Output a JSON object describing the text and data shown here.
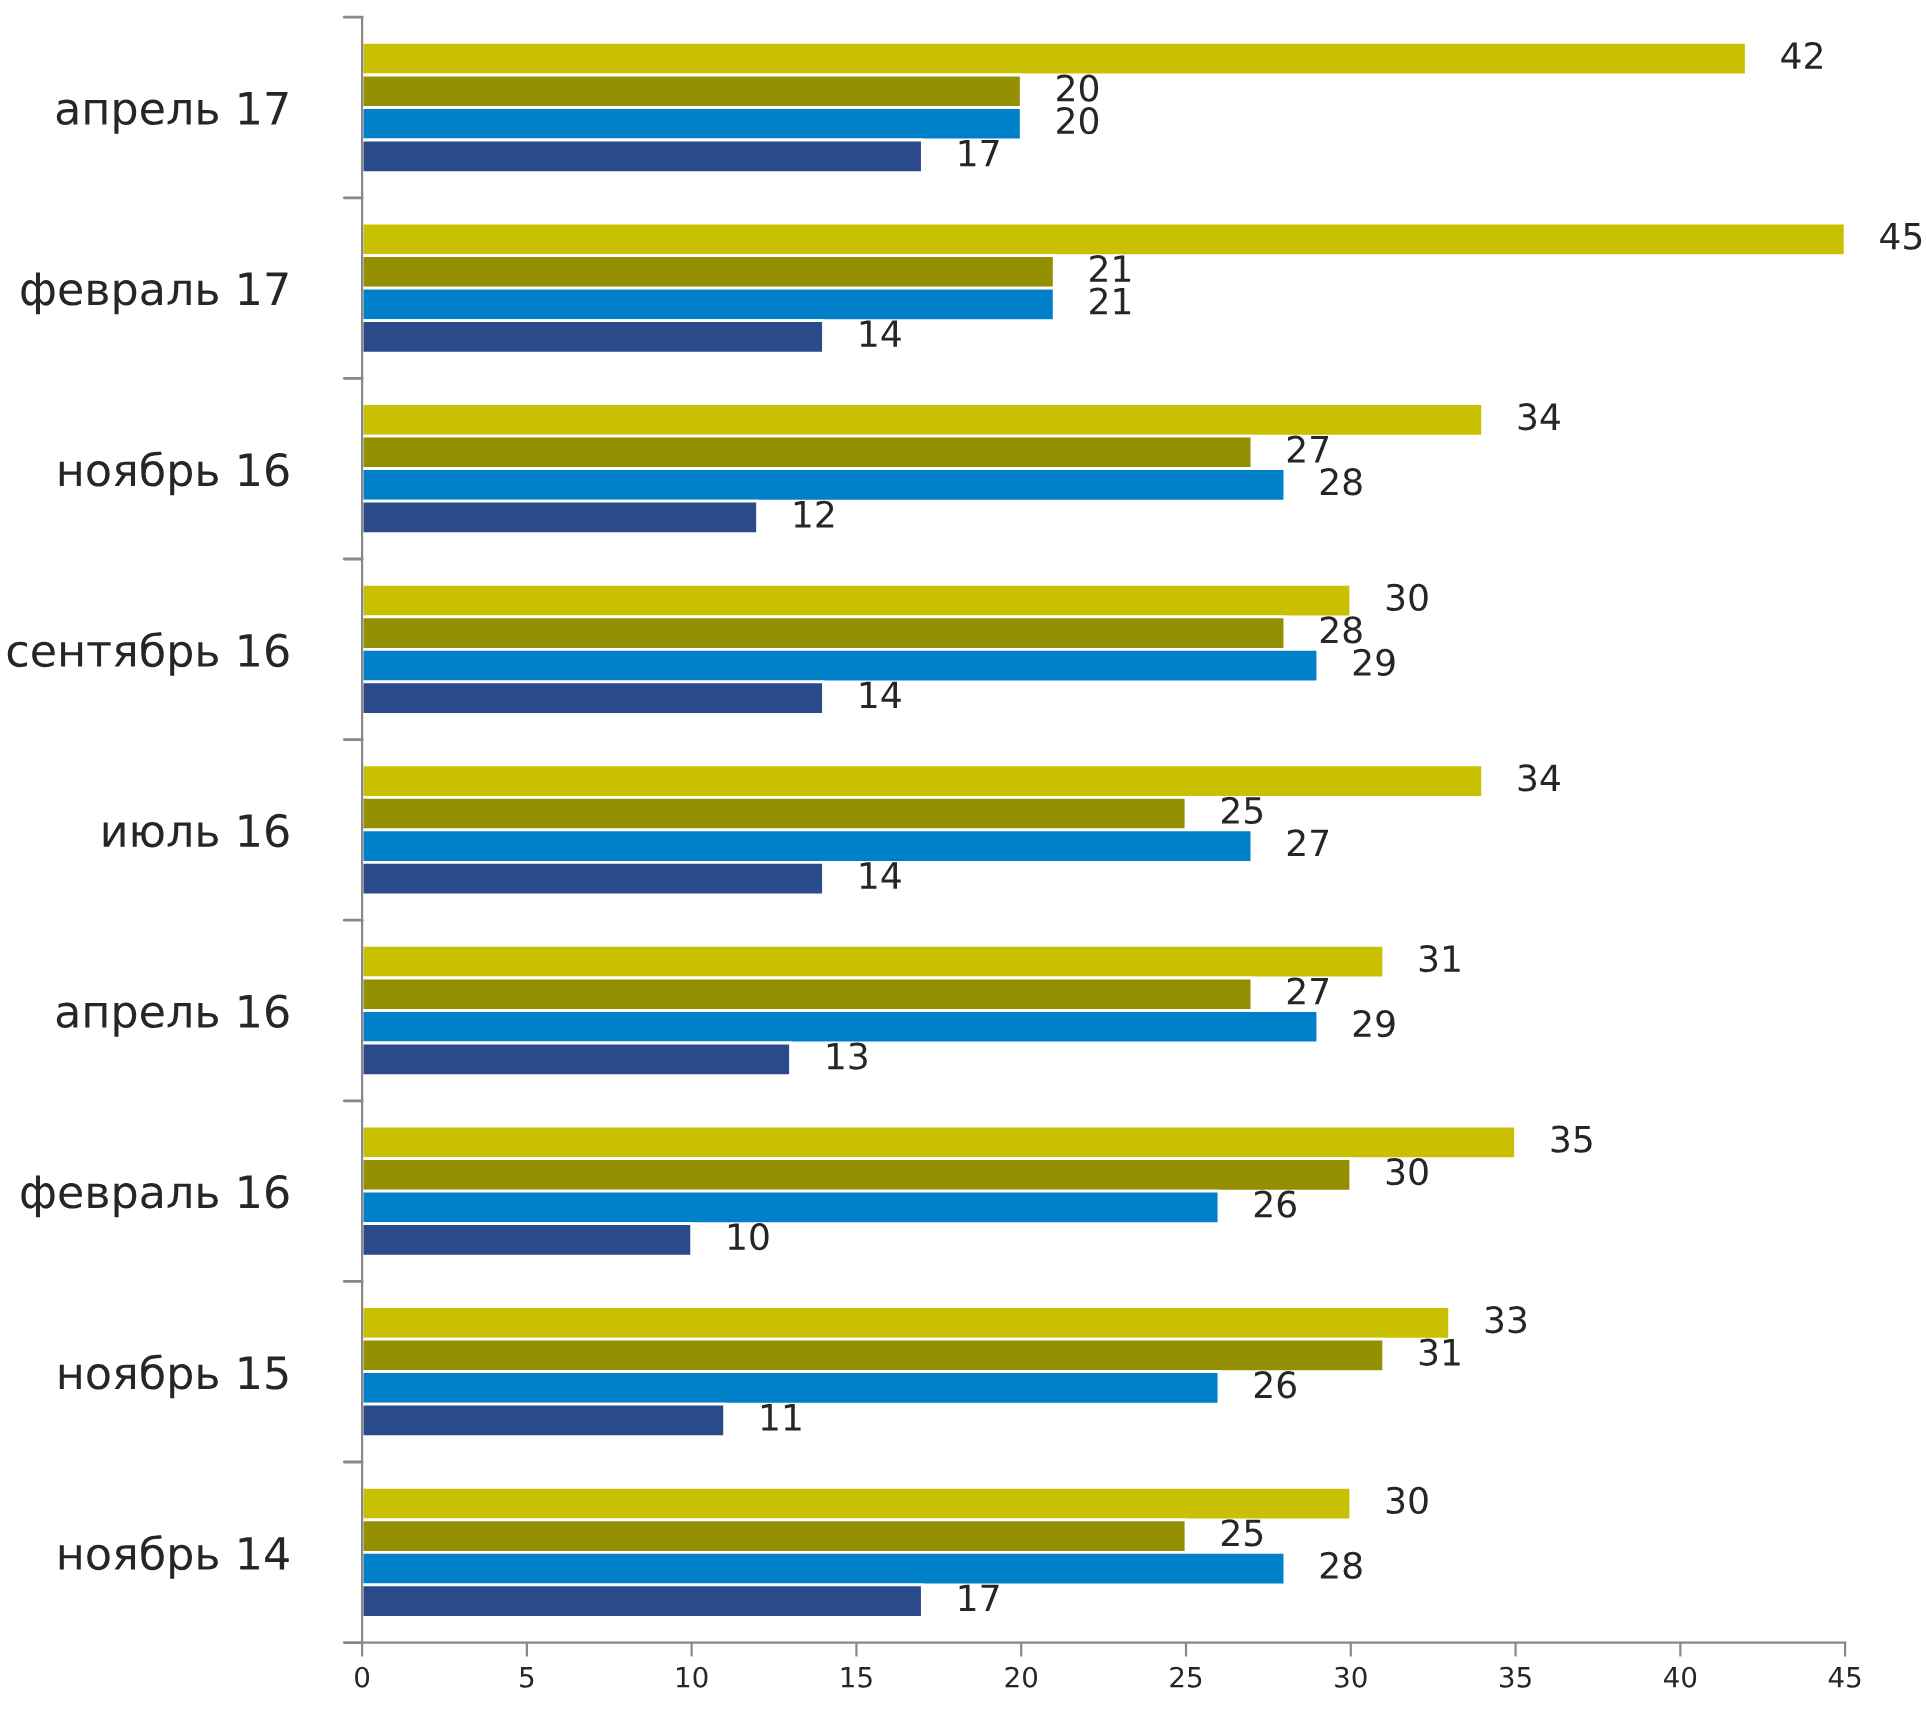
{
  "chart_data": {
    "type": "bar",
    "orientation": "horizontal",
    "data_labels": true,
    "grid": false,
    "legend": false,
    "categories": [
      "апрель 17",
      "февраль 17",
      "ноябрь 16",
      "сентябрь 16",
      "июль 16",
      "апрель 16",
      "февраль 16",
      "ноябрь 15",
      "ноябрь 14"
    ],
    "series": [
      {
        "color": "#c8c000",
        "values": [
          42,
          45,
          34,
          30,
          34,
          31,
          35,
          33,
          30
        ]
      },
      {
        "color": "#948f00",
        "values": [
          20,
          21,
          27,
          28,
          25,
          27,
          30,
          31,
          25
        ]
      },
      {
        "color": "#0080c8",
        "values": [
          20,
          21,
          28,
          29,
          27,
          29,
          26,
          26,
          28
        ]
      },
      {
        "color": "#2a4a8a",
        "values": [
          17,
          14,
          12,
          14,
          14,
          13,
          10,
          11,
          17
        ]
      }
    ],
    "xlim": [
      0,
      45
    ],
    "xticks": [
      0,
      5,
      10,
      15,
      20,
      25,
      30,
      35,
      40,
      45
    ]
  }
}
